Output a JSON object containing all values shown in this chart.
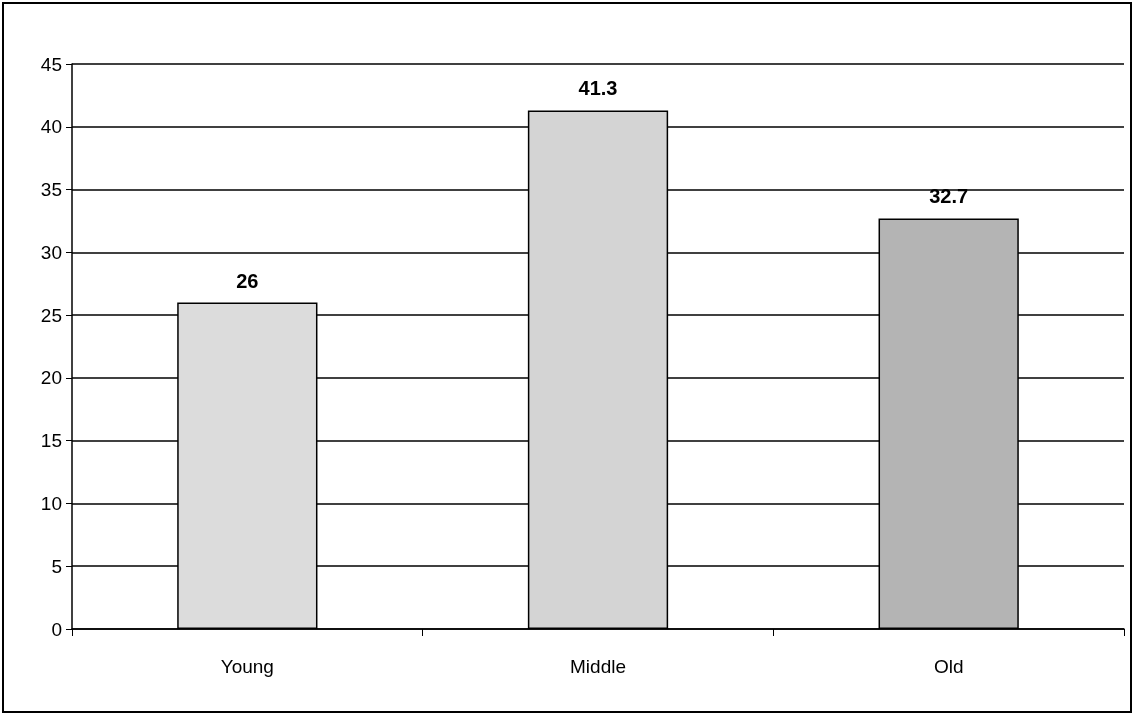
{
  "chart_data": {
    "type": "bar",
    "categories": [
      "Young",
      "Middle",
      "Old"
    ],
    "values": [
      26,
      41.3,
      32.7
    ],
    "colors": [
      "#dcdcdc",
      "#d4d4d4",
      "#b4b4b4"
    ],
    "ylim": [
      0,
      45
    ],
    "yticks": [
      0,
      5,
      10,
      15,
      20,
      25,
      30,
      35,
      40,
      45
    ],
    "grid": "y",
    "data_labels": true
  }
}
